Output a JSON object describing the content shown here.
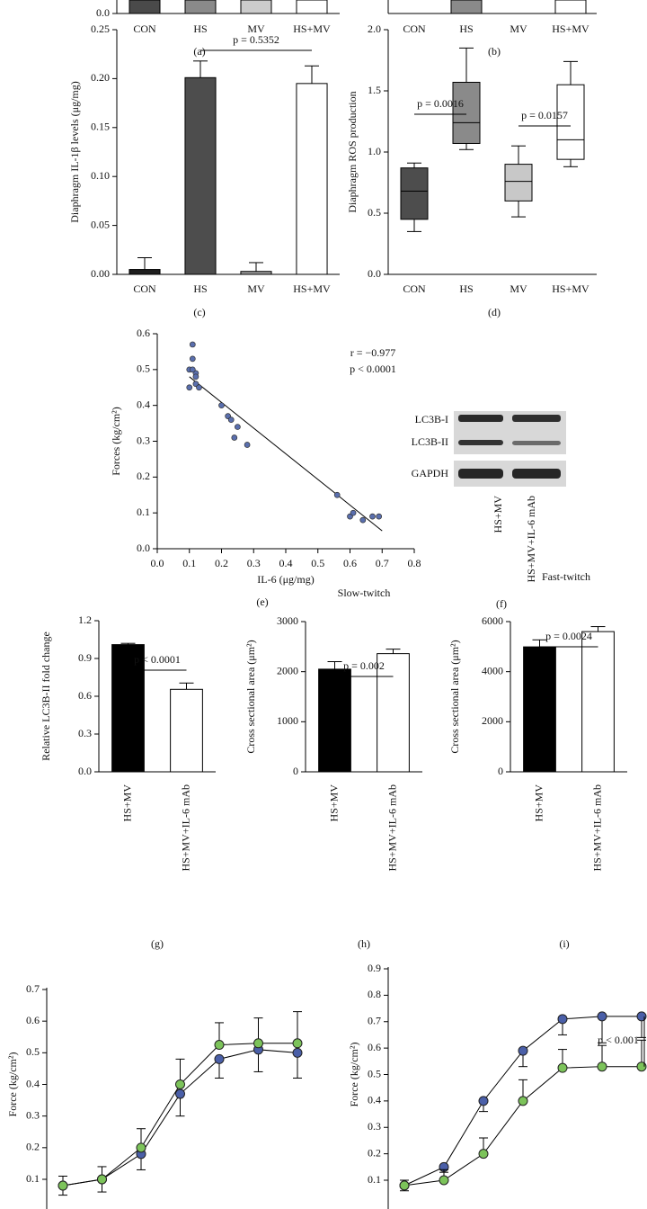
{
  "chart_data": [
    {
      "type": "bar",
      "panel_label": "(a)",
      "categories": [
        "CON",
        "HS",
        "MV",
        "HS+MV"
      ],
      "yticks": [
        {
          "value": 0,
          "label": "0.0"
        }
      ]
    },
    {
      "type": "bar",
      "panel_label": "(b)",
      "categories": [
        "CON",
        "HS",
        "MV",
        "HS+MV"
      ]
    },
    {
      "type": "bar",
      "panel_label": "(c)",
      "y_label": "Diaphragm IL-1β levels (μg/mg)",
      "categories": [
        "CON",
        "HS",
        "MV",
        "HS+MV"
      ],
      "values": [
        0.005,
        0.201,
        0.003,
        0.195
      ],
      "errors": [
        0.012,
        0.017,
        0.009,
        0.018
      ],
      "colors": [
        "#1e1e1e",
        "#4d4d4d",
        "#9a9a9a",
        "#ffffff"
      ],
      "ylim": [
        0,
        0.25
      ],
      "yticks": [
        {
          "value": 0,
          "label": "0.00"
        },
        0.05,
        {
          "value": 0.1,
          "label": "0.10"
        },
        0.15,
        {
          "value": 0.2,
          "label": "0.20"
        },
        0.25
      ],
      "annotations": [
        "p = 0.5352"
      ]
    },
    {
      "type": "box",
      "panel_label": "(d)",
      "y_label": "Diaphragm ROS production",
      "categories": [
        "CON",
        "HS",
        "MV",
        "HS+MV"
      ],
      "boxes": [
        {
          "min": 0.35,
          "q1": 0.45,
          "median": 0.68,
          "q3": 0.87,
          "max": 0.91
        },
        {
          "min": 1.02,
          "q1": 1.07,
          "median": 1.24,
          "q3": 1.57,
          "max": 1.85
        },
        {
          "min": 0.47,
          "q1": 0.6,
          "median": 0.76,
          "q3": 0.9,
          "max": 1.05
        },
        {
          "min": 0.88,
          "q1": 0.94,
          "median": 1.1,
          "q3": 1.55,
          "max": 1.74
        }
      ],
      "colors": [
        "#4d4d4d",
        "#8a8a8a",
        "#c8c8c8",
        "#ffffff"
      ],
      "ylim": [
        0,
        2
      ],
      "yticks": [
        {
          "value": 0,
          "label": "0.0"
        },
        0.5,
        {
          "value": 1,
          "label": "1.0"
        },
        1.5,
        {
          "value": 2,
          "label": "2.0"
        }
      ],
      "annotations": [
        "p = 0.0016",
        "p = 0.0157"
      ]
    },
    {
      "type": "scatter",
      "panel_label": "(e)",
      "x_label": "IL-6 (μg/mg)",
      "y_label": "Forces (kg/cm²)",
      "color": "#5a6fae",
      "x": [
        0.1,
        0.1,
        0.11,
        0.11,
        0.12,
        0.12,
        0.11,
        0.12,
        0.13,
        0.2,
        0.22,
        0.23,
        0.24,
        0.25,
        0.28,
        0.56,
        0.6,
        0.61,
        0.64,
        0.67,
        0.69
      ],
      "values": [
        0.45,
        0.5,
        0.53,
        0.57,
        0.49,
        0.48,
        0.5,
        0.46,
        0.45,
        0.4,
        0.37,
        0.36,
        0.31,
        0.34,
        0.29,
        0.15,
        0.09,
        0.1,
        0.08,
        0.09,
        0.09
      ],
      "fit_line": {
        "x": [
          0.1,
          0.7
        ],
        "y": [
          0.48,
          0.05
        ]
      },
      "xlim": [
        0,
        0.8
      ],
      "xticks": [
        {
          "value": 0,
          "label": "0.0"
        },
        0.1,
        0.2,
        0.3,
        0.4,
        0.5,
        0.6,
        0.7,
        0.8
      ],
      "ylim": [
        0,
        0.6
      ],
      "yticks": [
        {
          "value": 0,
          "label": "0.0"
        },
        0.1,
        0.2,
        0.3,
        0.4,
        0.5,
        0.6
      ],
      "annotations": [
        "r = −0.977",
        "p < 0.0001"
      ]
    },
    {
      "type": "bar",
      "panel_label": "(g)",
      "y_label": "Relative LC3B-II fold change",
      "categories": [
        "HS+MV",
        "HS+MV+IL-6 mAb"
      ],
      "values": [
        1.01,
        0.655
      ],
      "errors": [
        0.01,
        0.05
      ],
      "colors": [
        "#000000",
        "#ffffff"
      ],
      "ylim": [
        0,
        1.2
      ],
      "yticks": [
        {
          "value": 0,
          "label": "0.0"
        },
        0.3,
        0.6,
        0.9,
        1.2
      ],
      "annotations": [
        "p < 0.0001"
      ]
    },
    {
      "type": "bar",
      "panel_label": "(h)",
      "title": "Slow-twitch",
      "y_label": "Cross sectional area (μm²)",
      "categories": [
        "HS+MV",
        "HS+MV+IL-6 mAb"
      ],
      "values": [
        2050,
        2360
      ],
      "errors": [
        150,
        90
      ],
      "colors": [
        "#000000",
        "#ffffff"
      ],
      "ylim": [
        0,
        3000
      ],
      "yticks": [
        0,
        1000,
        2000,
        3000
      ],
      "annotations": [
        "p = 0.002"
      ]
    },
    {
      "type": "bar",
      "panel_label": "(i)",
      "title": "Fast-twitch",
      "y_label": "Cross sectional area (μm²)",
      "categories": [
        "HS+MV",
        "HS+MV+IL-6 mAb"
      ],
      "values": [
        4990,
        5600
      ],
      "errors": [
        280,
        200
      ],
      "colors": [
        "#000000",
        "#ffffff"
      ],
      "ylim": [
        0,
        6000
      ],
      "yticks": [
        0,
        2000,
        4000,
        6000
      ],
      "annotations": [
        "p = 0.0024"
      ]
    },
    {
      "type": "line",
      "y_label": "Force (kg/cm²)",
      "categories": [
        null,
        null,
        null,
        null,
        null,
        null,
        null
      ],
      "series": [
        {
          "color": "#4a5fa8",
          "values": [
            0.08,
            0.1,
            0.18,
            0.37,
            0.48,
            0.51,
            0.5
          ],
          "errors": [
            0.03,
            0.04,
            0.05,
            0.07,
            0.06,
            0.07,
            0.08
          ]
        },
        {
          "color": "#7cc35a",
          "values": [
            0.08,
            0.1,
            0.2,
            0.4,
            0.525,
            0.53,
            0.53
          ],
          "errors": [
            0.03,
            0.04,
            0.06,
            0.08,
            0.07,
            0.08,
            0.1
          ]
        }
      ],
      "ylim": [
        0.1,
        0.7
      ],
      "yticks": [
        0.1,
        0.2,
        0.3,
        0.4,
        0.5,
        0.6,
        0.7
      ]
    },
    {
      "type": "line",
      "y_label": "Force (kg/cm²)",
      "categories": [
        null,
        null,
        null,
        null,
        null,
        null,
        null
      ],
      "series": [
        {
          "color": "#4a5fa8",
          "values": [
            0.08,
            0.15,
            0.4,
            0.59,
            0.71,
            0.72,
            0.72
          ],
          "errors": [
            0.02,
            0.02,
            0.04,
            0.06,
            0.06,
            0.1,
            0.08
          ]
        },
        {
          "color": "#7cc35a",
          "values": [
            0.08,
            0.1,
            0.2,
            0.4,
            0.525,
            0.53,
            0.53
          ],
          "errors": [
            0.02,
            0.04,
            0.06,
            0.08,
            0.07,
            0.08,
            0.1
          ]
        }
      ],
      "ylim": [
        0.1,
        0.9
      ],
      "yticks": [
        0.1,
        0.2,
        0.3,
        0.4,
        0.5,
        0.6,
        0.7,
        0.8,
        0.9
      ],
      "annotations": [
        "p < 0.001"
      ]
    }
  ],
  "western_blot": {
    "panel_label": "(f)",
    "bands": [
      "LC3B-I",
      "LC3B-II",
      "GAPDH"
    ],
    "lanes": [
      "HS+MV",
      "HS+MV+IL-6 mAb"
    ]
  }
}
